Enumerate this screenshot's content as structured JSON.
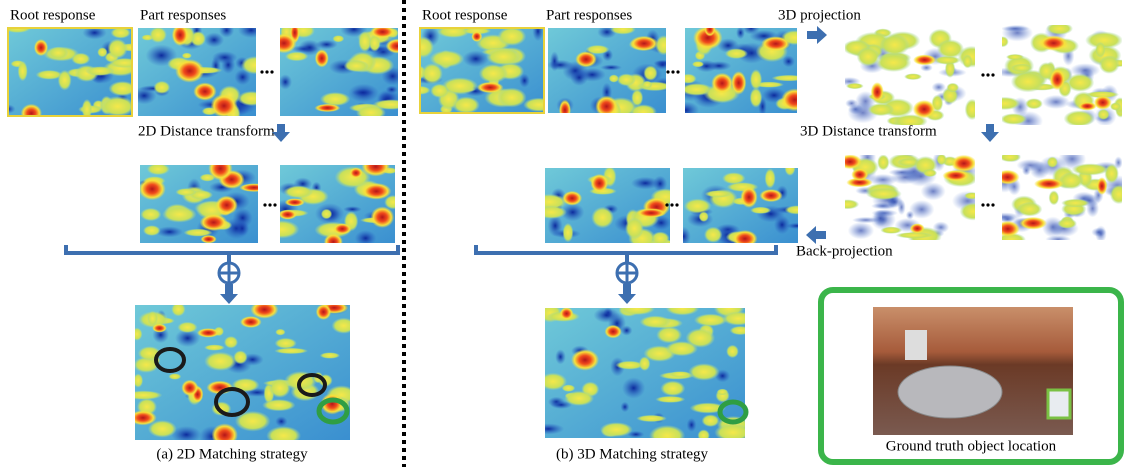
{
  "left": {
    "root_label": "Root  response",
    "part_label": "Part responses",
    "dt_label": "2D Distance transform",
    "caption": "(a) 2D Matching strategy"
  },
  "right": {
    "root_label": "Root response",
    "part_label": "Part responses",
    "projection_label": "3D projection",
    "dt_label": "3D Distance transform",
    "back_label": "Back-projection",
    "caption": "(b) 3D Matching strategy"
  },
  "ground_truth": {
    "caption": "Ground truth object location"
  }
}
